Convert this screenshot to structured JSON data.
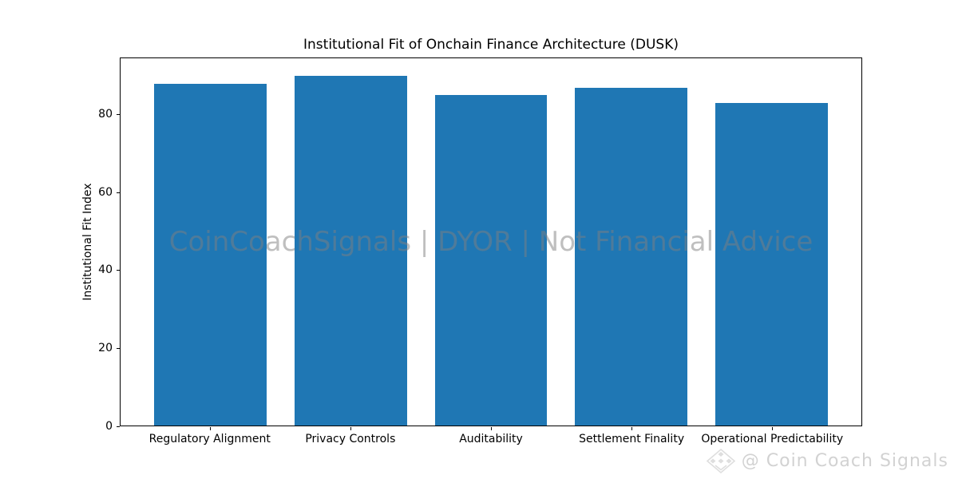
{
  "title": "Institutional Fit of Onchain Finance Architecture (DUSK)",
  "watermark": "CoinCoachSignals | DYOR | Not Financial Advice",
  "footer": {
    "icon": "gem-diamond-icon",
    "label": "@ Coin Coach Signals"
  },
  "colors": {
    "bar": "#1f77b4",
    "axis": "#000000",
    "watermark_gray": "#808080",
    "footer_gray": "#d2d2d2"
  },
  "chart_data": {
    "type": "bar",
    "title": "Institutional Fit of Onchain Finance Architecture (DUSK)",
    "xlabel": "",
    "ylabel": "Institutional Fit Index",
    "categories": [
      "Regulatory Alignment",
      "Privacy Controls",
      "Auditability",
      "Settlement Finality",
      "Operational Predictability"
    ],
    "values": [
      88,
      90,
      85,
      87,
      83
    ],
    "yticks": [
      0,
      20,
      40,
      60,
      80
    ],
    "ylim": [
      0,
      94.5
    ],
    "xlim": [
      -0.64,
      4.64
    ],
    "bar_width": 0.8,
    "bar_color": "#1f77b4",
    "grid": false,
    "legend": null
  }
}
